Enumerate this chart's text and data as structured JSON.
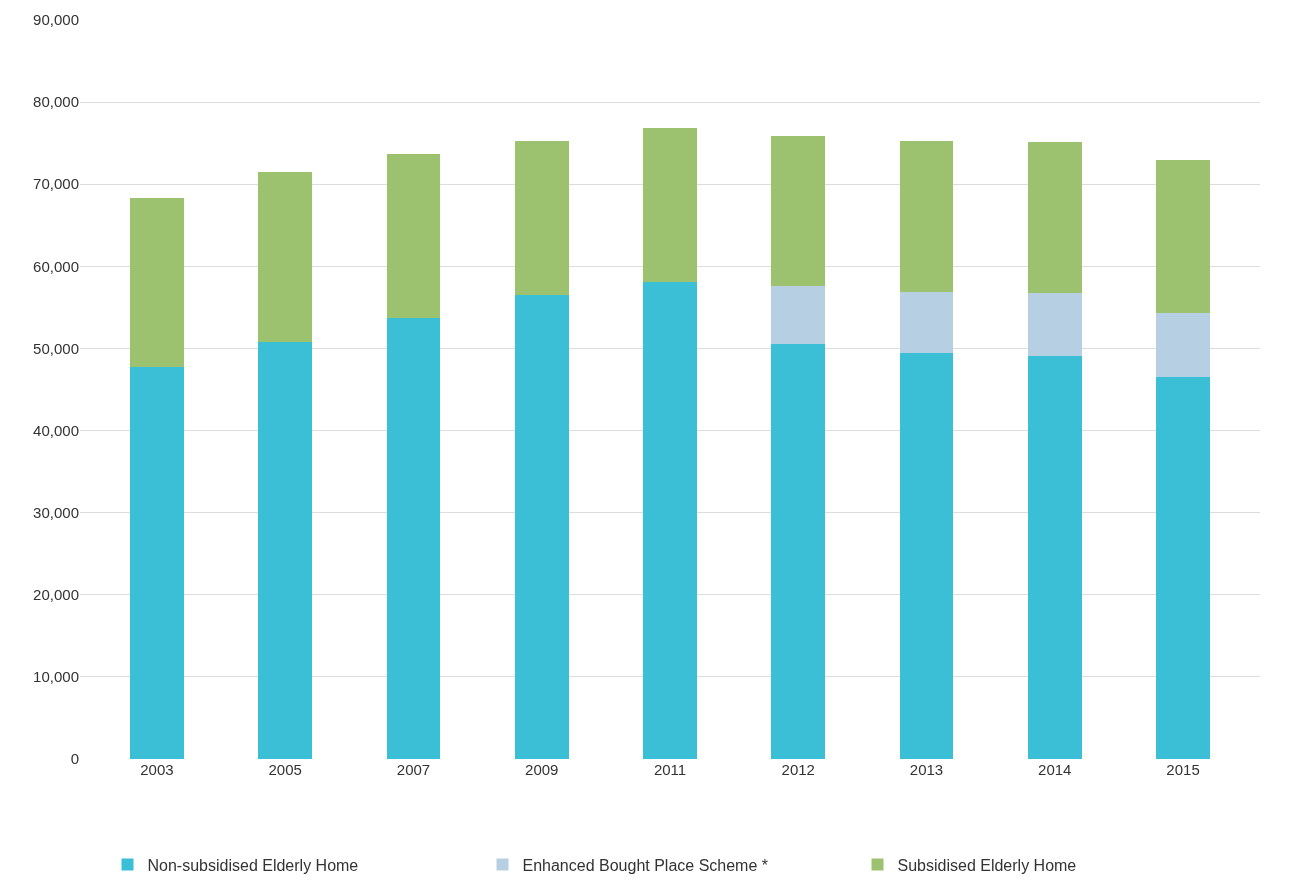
{
  "chart_data": {
    "type": "bar",
    "stacked": true,
    "categories": [
      "2003",
      "2005",
      "2007",
      "2009",
      "2011",
      "2012",
      "2013",
      "2014",
      "2015"
    ],
    "series": [
      {
        "name": "Non-subsidised Elderly Home",
        "color": "#3bbfd6",
        "values": [
          47800,
          50800,
          53700,
          56500,
          58100,
          50500,
          49500,
          49100,
          46500
        ]
      },
      {
        "name": "Enhanced Bought Place Scheme *",
        "color": "#b7cfe3",
        "values": [
          null,
          null,
          null,
          null,
          null,
          7100,
          7400,
          7600,
          7800
        ]
      },
      {
        "name": "Subsidised Elderly Home",
        "color": "#9cc26f",
        "values": [
          20500,
          20700,
          20000,
          18800,
          18700,
          18300,
          18400,
          18400,
          18600
        ]
      }
    ],
    "ylim": [
      0,
      90000
    ],
    "yticks": [
      0,
      {
        "value": 10000,
        "label": "10,000"
      },
      {
        "value": 20000,
        "label": "20,000"
      },
      {
        "value": 30000,
        "label": "30,000"
      },
      {
        "value": 40000,
        "label": "40,000"
      },
      {
        "value": 50000,
        "label": "50,000"
      },
      {
        "value": 60000,
        "label": "60,000"
      },
      {
        "value": 70000,
        "label": "70,000"
      },
      {
        "value": 80000,
        "label": "80,000"
      },
      {
        "value": 90000,
        "label": "90,000"
      }
    ],
    "grid": "y",
    "legend": "bottom"
  }
}
